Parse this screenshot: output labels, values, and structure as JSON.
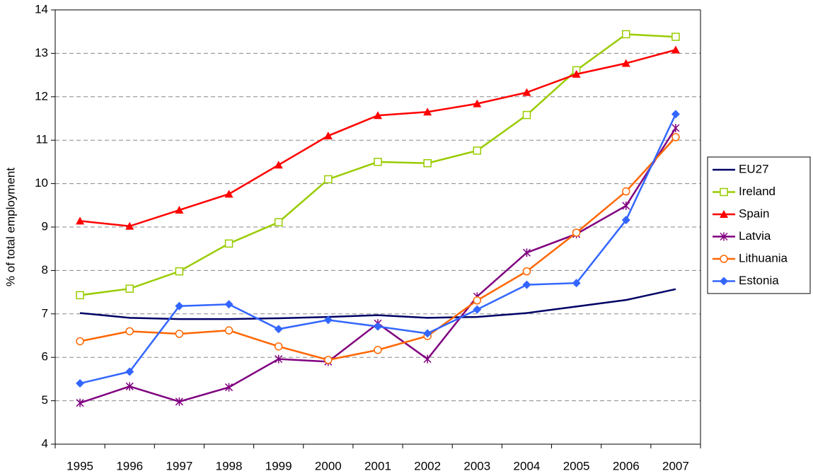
{
  "chart_data": {
    "type": "line",
    "y_label": "% of total employment",
    "categories": [
      "1995",
      "1996",
      "1997",
      "1998",
      "1999",
      "2000",
      "2001",
      "2002",
      "2003",
      "2004",
      "2005",
      "2006",
      "2007"
    ],
    "series": [
      {
        "name": "EU27",
        "color": "#000066",
        "marker": "none",
        "values": [
          7.02,
          6.91,
          6.88,
          6.88,
          6.9,
          6.93,
          6.97,
          6.91,
          6.93,
          7.02,
          7.17,
          7.32,
          7.57
        ]
      },
      {
        "name": "Ireland",
        "color": "#99cc00",
        "marker": "square",
        "values": [
          7.43,
          7.58,
          7.98,
          8.62,
          9.11,
          10.1,
          10.5,
          10.47,
          10.76,
          11.58,
          12.61,
          13.44,
          13.38
        ]
      },
      {
        "name": "Spain",
        "color": "#ff0000",
        "marker": "triangle",
        "values": [
          9.14,
          9.02,
          9.39,
          9.76,
          10.43,
          11.1,
          11.57,
          11.65,
          11.84,
          12.1,
          12.52,
          12.77,
          13.08
        ]
      },
      {
        "name": "Latvia",
        "color": "#800080",
        "marker": "star",
        "values": [
          4.95,
          5.33,
          4.98,
          5.31,
          5.96,
          5.9,
          6.78,
          5.96,
          7.4,
          8.41,
          8.84,
          9.49,
          11.28
        ]
      },
      {
        "name": "Lithuania",
        "color": "#ff6600",
        "marker": "circle",
        "values": [
          6.37,
          6.6,
          6.54,
          6.62,
          6.25,
          5.94,
          6.17,
          6.49,
          7.31,
          7.98,
          8.87,
          9.82,
          11.07
        ]
      },
      {
        "name": "Estonia",
        "color": "#3366ff",
        "marker": "diamond",
        "values": [
          5.4,
          5.67,
          7.18,
          7.22,
          6.65,
          6.86,
          6.71,
          6.55,
          7.1,
          7.67,
          7.71,
          9.16,
          11.6
        ]
      }
    ],
    "ylim": [
      4,
      14
    ],
    "yticks": [
      4,
      5,
      6,
      7,
      8,
      9,
      10,
      11,
      12,
      13,
      14
    ],
    "grid": true,
    "legend": "right"
  }
}
